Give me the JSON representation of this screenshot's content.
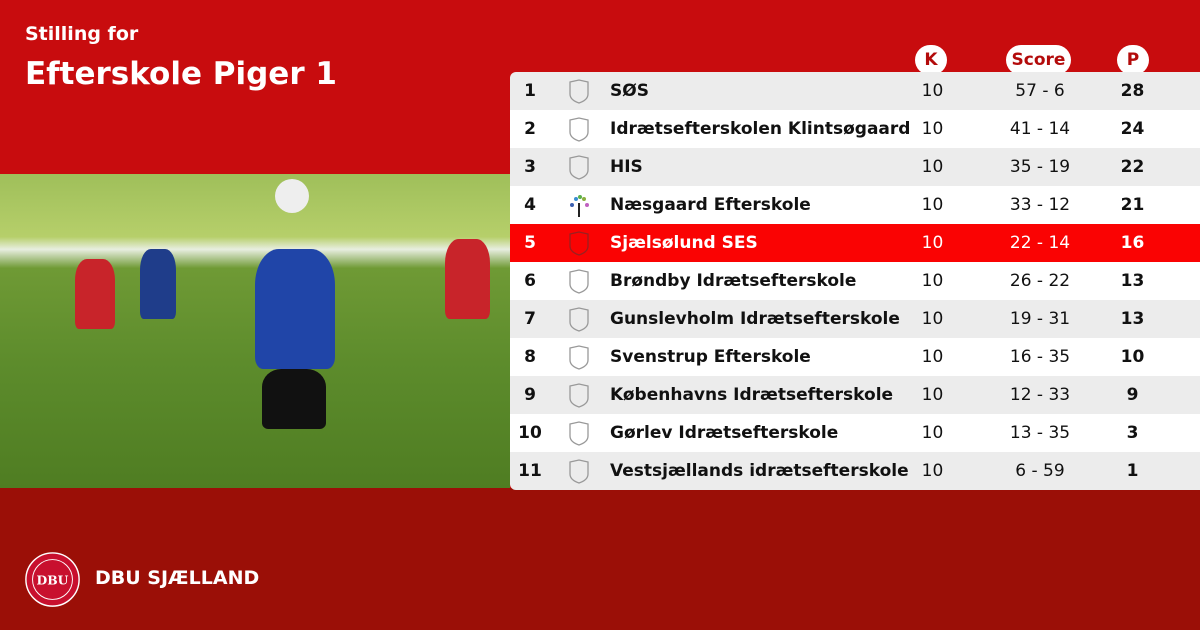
{
  "header": {
    "subtitle": "Stilling for",
    "title": "Efterskole Piger 1"
  },
  "columns": {
    "k": "K",
    "score": "Score",
    "p": "P"
  },
  "highlight_color": "#fa0303",
  "rows": [
    {
      "pos": "1",
      "name": "SØS",
      "k": "10",
      "score": "57 - 6",
      "p": "28",
      "icon": "shield-icon"
    },
    {
      "pos": "2",
      "name": "Idrætsefterskolen Klintsøgaard",
      "k": "10",
      "score": "41 - 14",
      "p": "24",
      "icon": "shield-icon"
    },
    {
      "pos": "3",
      "name": "HIS",
      "k": "10",
      "score": "35 - 19",
      "p": "22",
      "icon": "shield-icon"
    },
    {
      "pos": "4",
      "name": "Næsgaard Efterskole",
      "k": "10",
      "score": "33 - 12",
      "p": "21",
      "icon": "tree-logo-icon"
    },
    {
      "pos": "5",
      "name": "Sjælsølund SES",
      "k": "10",
      "score": "22 - 14",
      "p": "16",
      "icon": "shield-icon",
      "highlight": true
    },
    {
      "pos": "6",
      "name": "Brøndby Idrætsefterskole",
      "k": "10",
      "score": "26 - 22",
      "p": "13",
      "icon": "shield-icon"
    },
    {
      "pos": "7",
      "name": "Gunslevholm Idrætsefterskole",
      "k": "10",
      "score": "19 - 31",
      "p": "13",
      "icon": "shield-icon"
    },
    {
      "pos": "8",
      "name": "Svenstrup Efterskole",
      "k": "10",
      "score": "16 - 35",
      "p": "10",
      "icon": "shield-icon"
    },
    {
      "pos": "9",
      "name": "Københavns Idrætsefterskole",
      "k": "10",
      "score": "12 - 33",
      "p": "9",
      "icon": "shield-icon"
    },
    {
      "pos": "10",
      "name": "Gørlev Idrætsefterskole",
      "k": "10",
      "score": "13 - 35",
      "p": "3",
      "icon": "shield-icon"
    },
    {
      "pos": "11",
      "name": "Vestsjællands idrætsefterskole",
      "k": "10",
      "score": "6 - 59",
      "p": "1",
      "icon": "shield-icon"
    }
  ],
  "footer": {
    "brand": "DBU SJÆLLAND",
    "logo_text": "DANSK BOLDSPIL-UNION 1889 DBU"
  }
}
